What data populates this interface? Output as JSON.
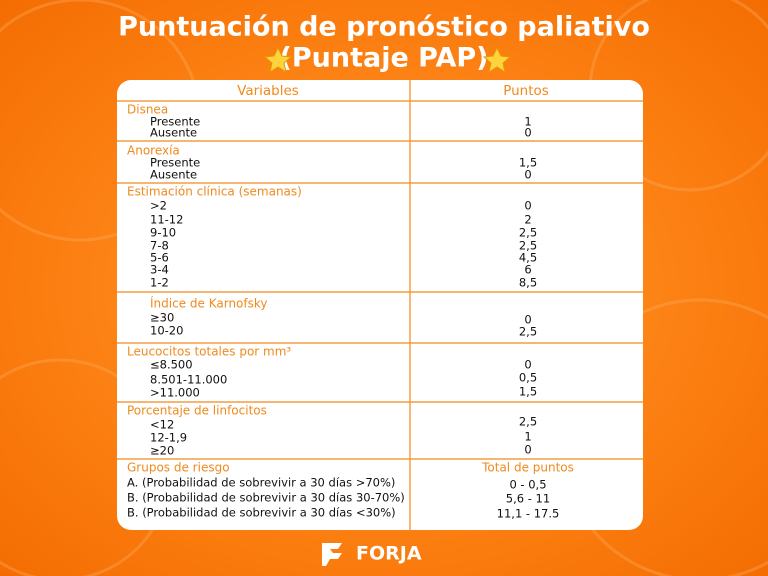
{
  "header": {
    "title": "Puntuación de pronóstico paliativo",
    "subtitle": "(Puntaje PAP)"
  },
  "table": {
    "columns": [
      "Variables",
      "Puntos"
    ],
    "sections": [
      {
        "title": "Disnea",
        "items": [
          {
            "label": "Presente",
            "points": "1"
          },
          {
            "label": "Ausente",
            "points": "0"
          }
        ]
      },
      {
        "title": "Anorexía",
        "items": [
          {
            "label": "Presente",
            "points": "1,5"
          },
          {
            "label": "Ausente",
            "points": "0"
          }
        ]
      },
      {
        "title": "Estimación clínica (semanas)",
        "items": [
          {
            "label": ">2",
            "points": "0"
          },
          {
            "label": "11-12",
            "points": "2"
          },
          {
            "label": "9-10",
            "points": "2,5"
          },
          {
            "label": "7-8",
            "points": "2,5"
          },
          {
            "label": "5-6",
            "points": "4,5"
          },
          {
            "label": "3-4",
            "points": "6"
          },
          {
            "label": "1-2",
            "points": "8,5"
          }
        ]
      },
      {
        "title": "Índice de Karnofsky",
        "items": [
          {
            "label": "≥30",
            "points": "0"
          },
          {
            "label": "10-20",
            "points": "2,5"
          }
        ]
      },
      {
        "title": "Leucocitos totales por mm³",
        "items": [
          {
            "label": "≤8.500",
            "points": "0"
          },
          {
            "label": "8.501-11.000",
            "points": "0,5"
          },
          {
            "label": ">11.000",
            "points": "1,5"
          }
        ]
      },
      {
        "title": "Porcentaje de linfocitos",
        "items": [
          {
            "label": "<12",
            "points": "2,5"
          },
          {
            "label": "12-1,9",
            "points": "1"
          },
          {
            "label": "≥20",
            "points": "0"
          }
        ]
      },
      {
        "title": "Grupos de riesgo",
        "points_title": "Total de puntos",
        "items": [
          {
            "label": "A. (Probabilidad de sobrevivir a 30 días >70%)",
            "points": "0 - 0,5"
          },
          {
            "label": "B. (Probabilidad de sobrevivir a 30 días 30-70%)",
            "points": "5,6 - 11"
          },
          {
            "label": "B. (Probabilidad de sobrevivir a 30 días <30%)",
            "points": "11,1 - 17.5"
          }
        ]
      }
    ]
  },
  "footer": {
    "logo": "FORJA"
  }
}
